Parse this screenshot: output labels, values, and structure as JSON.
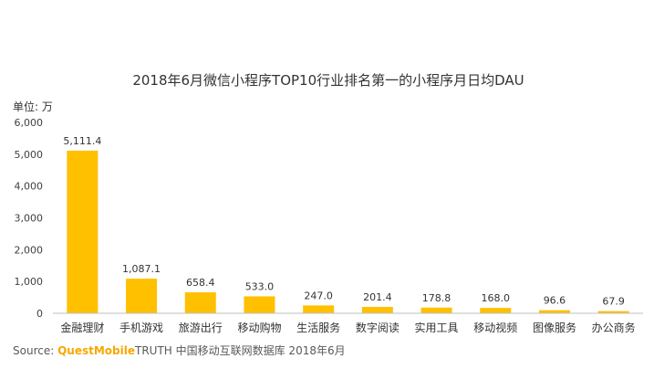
{
  "chart_data": {
    "type": "bar",
    "title": "2018年6月微信小程序TOP10行业排名第一的小程序月日均DAU",
    "unit_label": "单位: 万",
    "categories": [
      "金融理财",
      "手机游戏",
      "旅游出行",
      "移动购物",
      "生活服务",
      "数字阅读",
      "实用工具",
      "移动视频",
      "图像服务",
      "办公商务"
    ],
    "values": [
      5111.4,
      1087.1,
      658.4,
      533.0,
      247.0,
      201.4,
      178.8,
      168.0,
      96.6,
      67.9
    ],
    "value_labels": [
      "5,111.4",
      "1,087.1",
      "658.4",
      "533.0",
      "247.0",
      "201.4",
      "178.8",
      "168.0",
      "96.6",
      "67.9"
    ],
    "y_ticks": [
      "0",
      "1,000",
      "2,000",
      "3,000",
      "4,000",
      "5,000",
      "6,000"
    ],
    "ylim": [
      0,
      6000
    ],
    "bar_color": "#ffc000",
    "grid": false
  },
  "source": {
    "prefix": "Source:",
    "brand": "QuestMobile",
    "rest": "TRUTH 中国移动互联网数据库 2018年6月"
  }
}
